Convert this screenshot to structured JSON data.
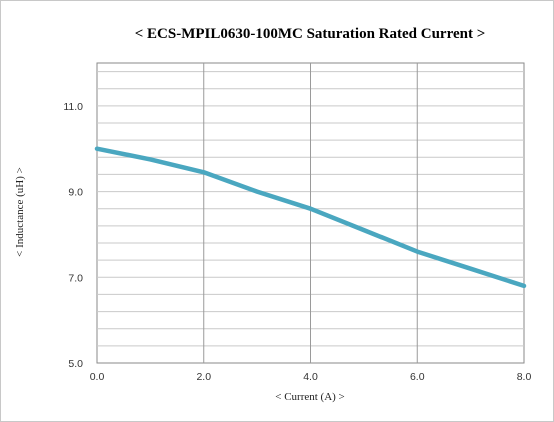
{
  "chart_data": {
    "type": "line",
    "title": "< ECS-MPIL0630-100MC  Saturation  Rated Current  >",
    "xlabel": "< Current (A) >",
    "ylabel": "< Inductance (uH) >",
    "xlim": [
      0,
      8
    ],
    "ylim": [
      5,
      12
    ],
    "x_ticks": [
      0,
      2,
      4,
      6,
      8
    ],
    "x_tick_labels": [
      "0.0",
      "2.0",
      "4.0",
      "6.0",
      "8.0"
    ],
    "y_ticks": [
      5,
      7,
      9,
      11
    ],
    "y_tick_labels": [
      "5.0",
      "7.0",
      "9.0",
      "11.0"
    ],
    "y_minor_step": 0.4,
    "grid": true,
    "legend": "none",
    "series": [
      {
        "x": [
          0,
          1,
          2,
          3,
          4,
          5,
          6,
          7,
          8
        ],
        "y": [
          10.0,
          9.75,
          9.45,
          9.0,
          8.6,
          8.1,
          7.6,
          7.2,
          6.8
        ],
        "color": "#4aa7c0"
      }
    ]
  }
}
